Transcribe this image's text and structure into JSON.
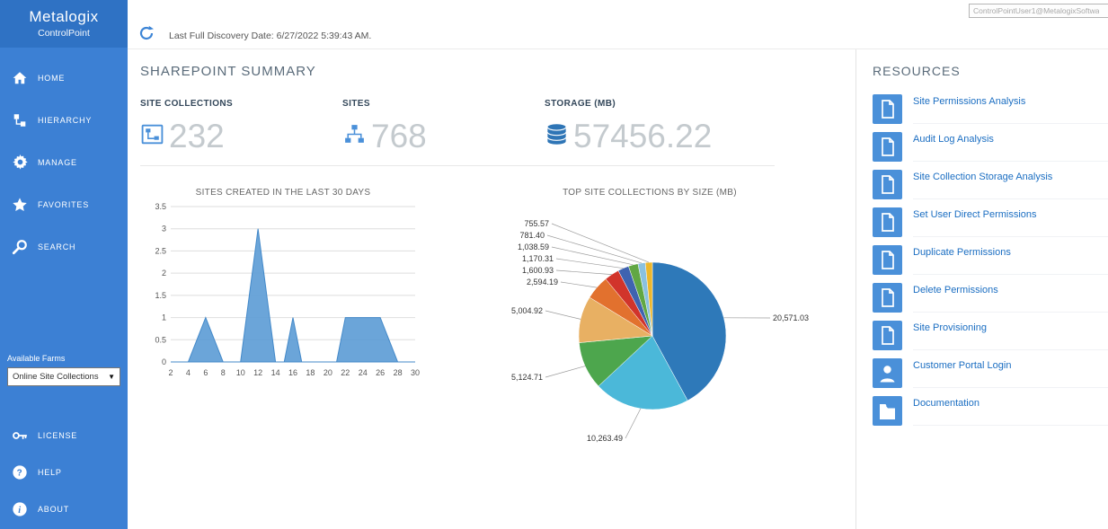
{
  "sidebar": {
    "brand": {
      "title": "Metalogix",
      "subtitle": "ControlPoint"
    },
    "nav": [
      {
        "label": "HOME",
        "icon": "home-icon"
      },
      {
        "label": "HIERARCHY",
        "icon": "hierarchy-icon"
      },
      {
        "label": "MANAGE",
        "icon": "gear-icon"
      },
      {
        "label": "FAVORITES",
        "icon": "star-icon"
      },
      {
        "label": "SEARCH",
        "icon": "search-icon"
      }
    ],
    "available_farms_label": "Available Farms",
    "farms_value": "Online Site Collections",
    "bottom_nav": [
      {
        "label": "LICENSE",
        "icon": "key-icon"
      },
      {
        "label": "HELP",
        "icon": "help-icon"
      },
      {
        "label": "ABOUT",
        "icon": "info-icon"
      }
    ]
  },
  "topbar": {
    "discovery": "Last Full Discovery Date: 6/27/2022 5:39:43 AM.",
    "user": "ControlPointUser1@MetalogixSoftwa"
  },
  "main": {
    "title": "SHAREPOINT SUMMARY",
    "stats": [
      {
        "label": "SITE COLLECTIONS",
        "value": "232",
        "icon": "site-collections-icon"
      },
      {
        "label": "SITES",
        "value": "768",
        "icon": "sites-icon"
      },
      {
        "label": "STORAGE (MB)",
        "value": "57456.22",
        "icon": "database-icon"
      }
    ]
  },
  "chart_data": [
    {
      "type": "area",
      "title": "SITES CREATED IN THE LAST 30 DAYS",
      "x": [
        2,
        4,
        6,
        8,
        10,
        12,
        14,
        15,
        16,
        17,
        21,
        22,
        26,
        28,
        30
      ],
      "y": [
        0,
        0,
        1,
        0,
        0,
        3,
        0,
        0,
        1,
        0,
        0,
        1,
        1,
        0,
        0
      ],
      "xticks": [
        2,
        4,
        6,
        8,
        10,
        12,
        14,
        16,
        18,
        20,
        22,
        24,
        26,
        28,
        30
      ],
      "yticks": [
        0,
        0.5,
        1,
        1.5,
        2,
        2.5,
        3,
        3.5
      ],
      "xlim": [
        2,
        30
      ],
      "ylim": [
        0,
        3.5
      ],
      "grid": "horizontal",
      "fill": "#5B9BD5",
      "stroke": "#4389C9"
    },
    {
      "type": "pie",
      "title": "TOP SITE COLLECTIONS BY SIZE (MB)",
      "labels": [
        "20,571.03",
        "10,263.49",
        "5,124.71",
        "5,004.92",
        "2,594.19",
        "1,600.93",
        "1,170.31",
        "1,038.59",
        "781.40",
        "755.57"
      ],
      "values": [
        20571.03,
        10263.49,
        5124.71,
        5004.92,
        2594.19,
        1600.93,
        1170.31,
        1038.59,
        781.4,
        755.57
      ],
      "colors": [
        "#2E79B9",
        "#4BB8D9",
        "#4DA64D",
        "#E8B063",
        "#E2712E",
        "#D1342B",
        "#3F63B0",
        "#61A744",
        "#8AC1E0",
        "#EDB72C"
      ],
      "start_angle_deg": -90,
      "direction": "clockwise",
      "legend": "off"
    }
  ],
  "resources": {
    "title": "RESOURCES",
    "items": [
      {
        "label": "Site Permissions Analysis",
        "icon": "document-icon"
      },
      {
        "label": "Audit Log Analysis",
        "icon": "document-icon"
      },
      {
        "label": "Site Collection Storage Analysis",
        "icon": "document-icon"
      },
      {
        "label": "Set User Direct Permissions",
        "icon": "document-icon"
      },
      {
        "label": "Duplicate Permissions",
        "icon": "document-icon"
      },
      {
        "label": "Delete Permissions",
        "icon": "document-icon"
      },
      {
        "label": "Site Provisioning",
        "icon": "document-icon"
      },
      {
        "label": "Customer Portal Login",
        "icon": "person-icon"
      },
      {
        "label": "Documentation",
        "icon": "folder-icon"
      }
    ]
  }
}
